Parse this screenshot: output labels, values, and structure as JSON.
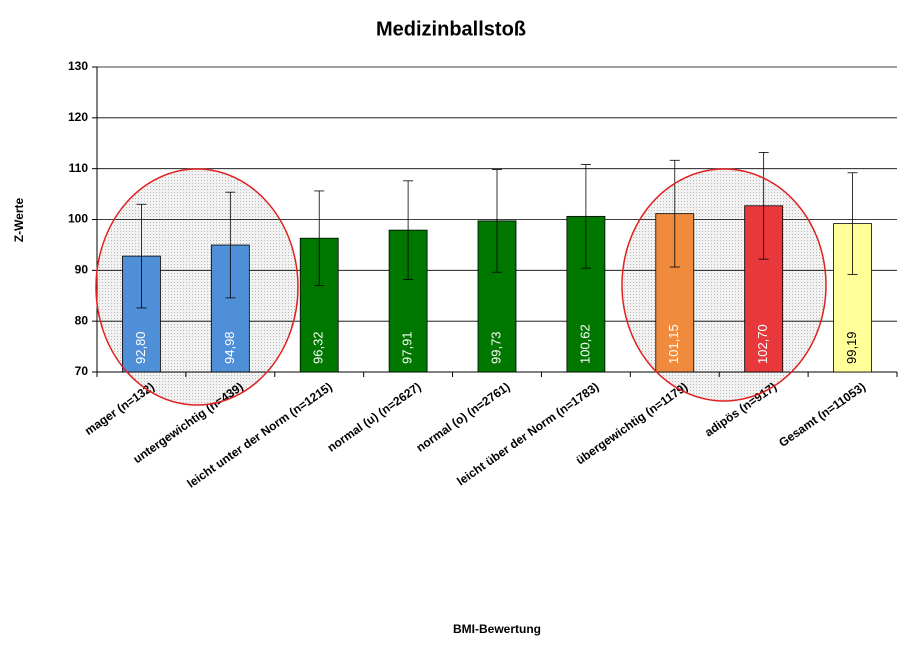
{
  "chart_data": {
    "type": "bar",
    "title": "Medizinballstoß",
    "x_label": "BMI-Bewertung",
    "y_label": "Z-Werte",
    "categories": [
      "mager (n=132)",
      "untergewichtig (n=439)",
      "leicht unter der Norm (n=1215)",
      "normal (u) (n=2627)",
      "normal (o) (n=2761)",
      "leicht über der Norm (n=1783)",
      "übergewichtig (n=1179)",
      "adipös (n=917)",
      "Gesamt (n=11053)"
    ],
    "values": [
      92.8,
      94.98,
      96.32,
      97.91,
      99.73,
      100.62,
      101.15,
      102.7,
      99.19
    ],
    "value_labels": [
      "92,80",
      "94,98",
      "96,32",
      "97,91",
      "99,73",
      "100,62",
      "101,15",
      "102,70",
      "99,19"
    ],
    "errors": [
      10.2,
      10.4,
      9.3,
      9.7,
      10.1,
      10.2,
      10.5,
      10.5,
      10.0
    ],
    "colors": [
      "#4f8fd8",
      "#4f8fd8",
      "#007800",
      "#007800",
      "#007800",
      "#007800",
      "#f08a3c",
      "#e8383c",
      "#ffff99"
    ],
    "ylim": [
      70,
      130
    ],
    "yticks": [
      70,
      80,
      90,
      100,
      110,
      120,
      130
    ],
    "grid": true
  }
}
